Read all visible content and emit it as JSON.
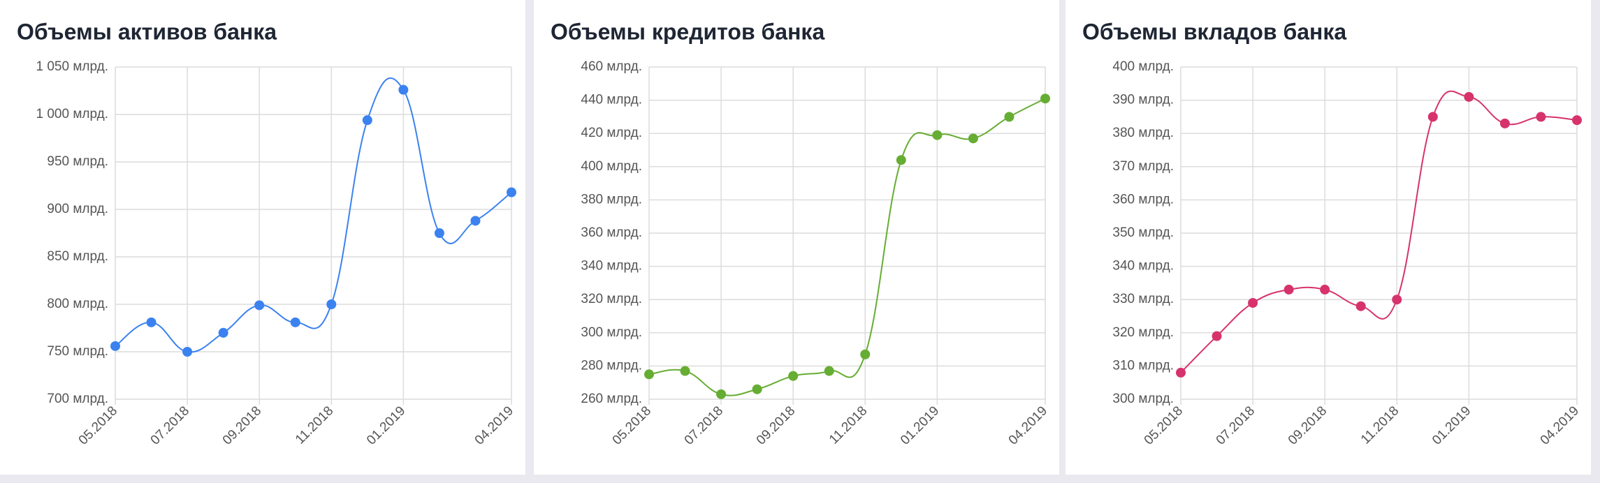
{
  "chart_data": [
    {
      "type": "line",
      "title": "Объемы активов банка",
      "categories": [
        "05.2018",
        null,
        "07.2018",
        null,
        "09.2018",
        null,
        "11.2018",
        null,
        "01.2019",
        null,
        null,
        "04.2019"
      ],
      "values": [
        756,
        781,
        750,
        770,
        799,
        781,
        800,
        994,
        1026,
        875,
        888,
        918
      ],
      "color": "#3b82f0",
      "ylim": [
        700,
        1050
      ],
      "yticks": [
        {
          "value": 700,
          "label": "700 млрд."
        },
        {
          "value": 750,
          "label": "750 млрд."
        },
        {
          "value": 800,
          "label": "800 млрд."
        },
        {
          "value": 850,
          "label": "850 млрд."
        },
        {
          "value": 900,
          "label": "900 млрд."
        },
        {
          "value": 950,
          "label": "950 млрд."
        },
        {
          "value": 1000,
          "label": "1 000 млрд."
        },
        {
          "value": 1050,
          "label": "1 050 млрд."
        }
      ],
      "grid": true
    },
    {
      "type": "line",
      "title": "Объемы кредитов банка",
      "categories": [
        "05.2018",
        null,
        "07.2018",
        null,
        "09.2018",
        null,
        "11.2018",
        null,
        "01.2019",
        null,
        null,
        "04.2019"
      ],
      "values": [
        275,
        277,
        263,
        266,
        274,
        277,
        287,
        404,
        419,
        417,
        430,
        441
      ],
      "color": "#66ad33",
      "ylim": [
        260,
        460
      ],
      "yticks": [
        {
          "value": 260,
          "label": "260 млрд."
        },
        {
          "value": 280,
          "label": "280 млрд."
        },
        {
          "value": 300,
          "label": "300 млрд."
        },
        {
          "value": 320,
          "label": "320 млрд."
        },
        {
          "value": 340,
          "label": "340 млрд."
        },
        {
          "value": 360,
          "label": "360 млрд."
        },
        {
          "value": 380,
          "label": "380 млрд."
        },
        {
          "value": 400,
          "label": "400 млрд."
        },
        {
          "value": 420,
          "label": "420 млрд."
        },
        {
          "value": 440,
          "label": "440 млрд."
        },
        {
          "value": 460,
          "label": "460 млрд."
        }
      ],
      "grid": true
    },
    {
      "type": "line",
      "title": "Объемы вкладов банка",
      "categories": [
        "05.2018",
        null,
        "07.2018",
        null,
        "09.2018",
        null,
        "11.2018",
        null,
        "01.2019",
        null,
        null,
        "04.2019"
      ],
      "values": [
        308,
        319,
        329,
        333,
        333,
        328,
        330,
        385,
        391,
        383,
        385,
        384
      ],
      "color": "#d6336c",
      "ylim": [
        300,
        400
      ],
      "yticks": [
        {
          "value": 300,
          "label": "300 млрд."
        },
        {
          "value": 310,
          "label": "310 млрд."
        },
        {
          "value": 320,
          "label": "320 млрд."
        },
        {
          "value": 330,
          "label": "330 млрд."
        },
        {
          "value": 340,
          "label": "340 млрд."
        },
        {
          "value": 350,
          "label": "350 млрд."
        },
        {
          "value": 360,
          "label": "360 млрд."
        },
        {
          "value": 370,
          "label": "370 млрд."
        },
        {
          "value": 380,
          "label": "380 млрд."
        },
        {
          "value": 390,
          "label": "390 млрд."
        },
        {
          "value": 400,
          "label": "400 млрд."
        }
      ],
      "grid": true
    }
  ]
}
